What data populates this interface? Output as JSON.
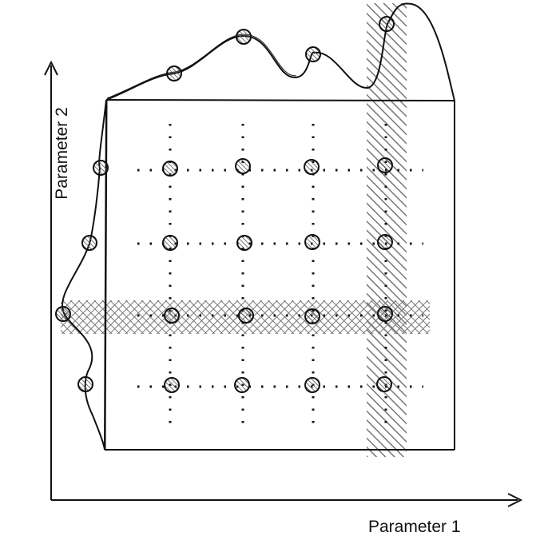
{
  "axes": {
    "x_label": "Parameter 1",
    "y_label": "Parameter 2"
  },
  "grid": {
    "columns": 4,
    "rows": 4,
    "important_column": 4,
    "important_row": 3
  },
  "style": {
    "stroke": "#111111",
    "hatch": "#777777",
    "background": "#ffffff"
  },
  "icons": [
    "arrow-icon"
  ]
}
